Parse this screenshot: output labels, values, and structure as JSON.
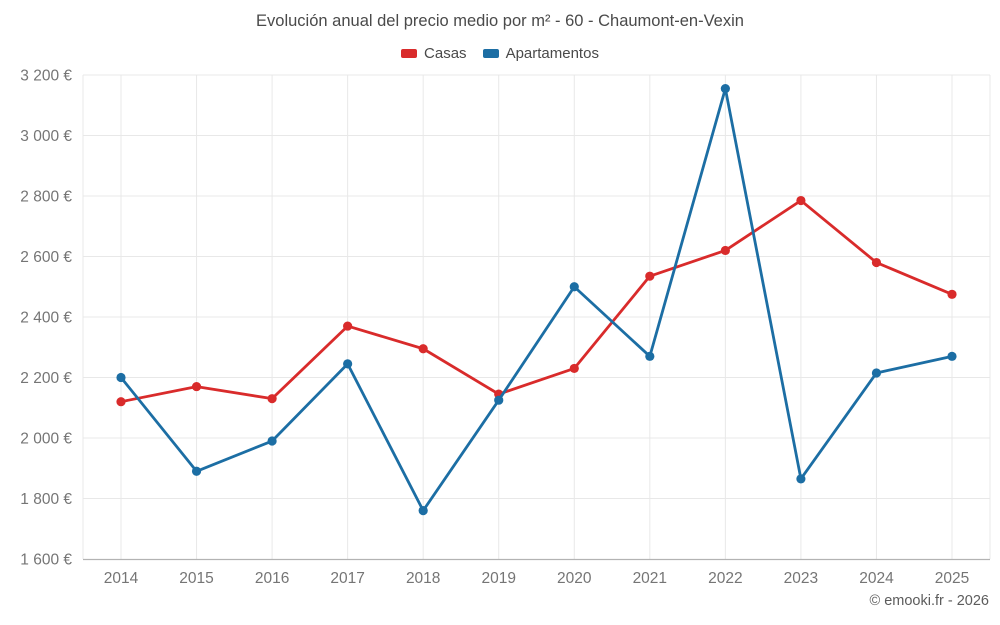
{
  "title": "Evolución anual del precio medio por m² - 60 - Chaumont-en-Vexin",
  "footer": "© emooki.fr - 2026",
  "legend": {
    "items": [
      {
        "label": "Casas",
        "color": "#d92b2b"
      },
      {
        "label": "Apartamentos",
        "color": "#1c6ea4"
      }
    ]
  },
  "colors": {
    "casas": "#d92b2b",
    "apartamentos": "#1c6ea4",
    "grid": "#e8e8e8",
    "axis_line": "#b3b3b3",
    "tick_text": "#757575"
  },
  "chart_data": {
    "type": "line",
    "title": "Evolución anual del precio medio por m² - 60 - Chaumont-en-Vexin",
    "x": [
      2014,
      2015,
      2016,
      2017,
      2018,
      2019,
      2020,
      2021,
      2022,
      2023,
      2024,
      2025
    ],
    "xtick_labels": [
      "2014",
      "2015",
      "2016",
      "2017",
      "2018",
      "2019",
      "2020",
      "2021",
      "2022",
      "2023",
      "2024",
      "2025"
    ],
    "series": [
      {
        "name": "Casas",
        "color": "#d92b2b",
        "values": [
          2120,
          2170,
          2130,
          2370,
          2295,
          2145,
          2230,
          2535,
          2620,
          2785,
          2580,
          2475
        ]
      },
      {
        "name": "Apartamentos",
        "color": "#1c6ea4",
        "values": [
          2200,
          1890,
          1990,
          2245,
          1760,
          2125,
          2500,
          2270,
          3155,
          1865,
          2215,
          2270
        ]
      }
    ],
    "ylim": [
      1600,
      3200
    ],
    "ytick_step": 200,
    "ytick_labels": [
      "1 600 €",
      "1 800 €",
      "2 000 €",
      "2 200 €",
      "2 400 €",
      "2 600 €",
      "2 800 €",
      "3 000 €",
      "3 200 €"
    ],
    "xlabel": "",
    "ylabel": "",
    "grid": true,
    "legend_position": "top",
    "marker": "circle"
  }
}
